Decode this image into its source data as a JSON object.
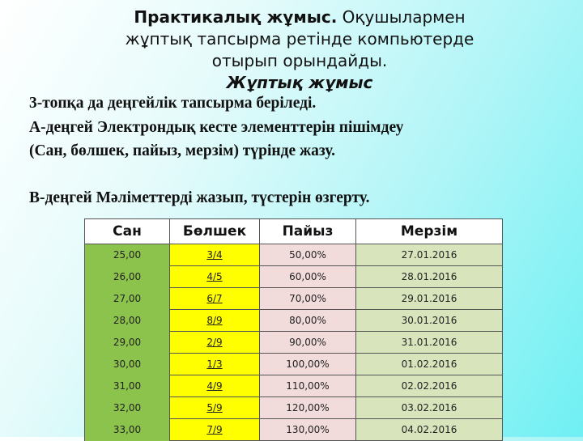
{
  "title": {
    "bold": "Практикалық жұмыс.",
    "rest_line1": " Оқушылармен",
    "line2": "жұптық тапсырма ретінде компьютерде",
    "line3": "отырып орындайды.",
    "subtitle": "Жұптық жұмыс"
  },
  "body": {
    "line1": "3-топқа да  деңгейлік тапсырма беріледі.",
    "line2": "А-деңгей  Электрондық  кесте элементтерін пішімдеу",
    "line3": "(Сан, бөлшек, пайыз, мерзім) түрінде жазу.",
    "line4": "В-деңгей Мәліметтерді жазып, түстерін өзгерту."
  },
  "table": {
    "headers": [
      "Сан",
      "Бөлшек",
      "Пайыз",
      "Мерзім"
    ],
    "rows": [
      [
        "25,00",
        "3/4",
        "50,00%",
        "27.01.2016"
      ],
      [
        "26,00",
        "4/5",
        "60,00%",
        "28.01.2016"
      ],
      [
        "27,00",
        "6/7",
        "70,00%",
        "29.01.2016"
      ],
      [
        "28,00",
        "8/9",
        "80,00%",
        "30.01.2016"
      ],
      [
        "29,00",
        "2/9",
        "90,00%",
        "31.01.2016"
      ],
      [
        "30,00",
        "1/3",
        "100,00%",
        "01.02.2016"
      ],
      [
        "31,00",
        "4/9",
        "110,00%",
        "02.02.2016"
      ],
      [
        "32,00",
        "5/9",
        "120,00%",
        "03.02.2016"
      ],
      [
        "33,00",
        "7/9",
        "130,00%",
        "04.02.2016"
      ]
    ],
    "column_colors": [
      "#8cc34c",
      "#ffff00",
      "#f2dcdb",
      "#d8e4bc"
    ]
  }
}
